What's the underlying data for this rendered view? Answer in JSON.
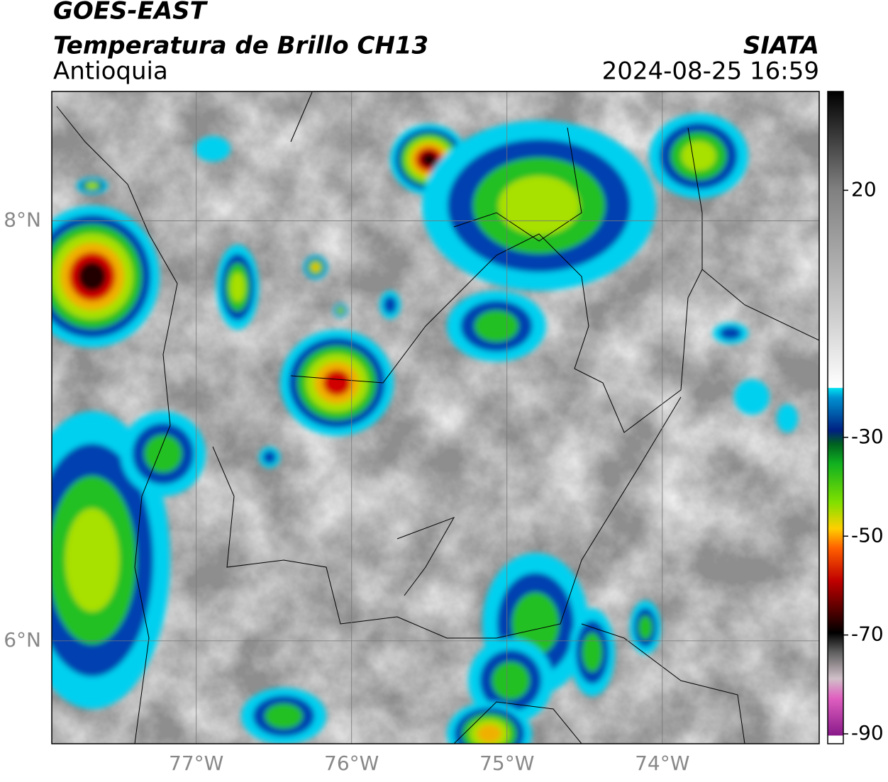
{
  "chart_data": {
    "type": "map",
    "title": "GOES-EAST",
    "subtitle": "Temperatura de Brillo CH13",
    "region": "Antioquia",
    "source": "SIATA",
    "datetime": "2024-08-25 16:59",
    "xlim": [
      -77.93,
      -72.99
    ],
    "ylim": [
      5.51,
      8.616
    ],
    "xticks": [
      {
        "value": -77,
        "label": "77°W"
      },
      {
        "value": -76,
        "label": "76°W"
      },
      {
        "value": -75,
        "label": "75°W"
      },
      {
        "value": -74,
        "label": "74°W"
      }
    ],
    "yticks": [
      {
        "value": 8,
        "label": "8°N"
      },
      {
        "value": 6,
        "label": "6°N"
      }
    ],
    "grid": true,
    "colorbar_lim": [
      -92,
      40
    ],
    "colorbar_ticks": [
      20,
      -30,
      -50,
      -70,
      -90
    ]
  }
}
